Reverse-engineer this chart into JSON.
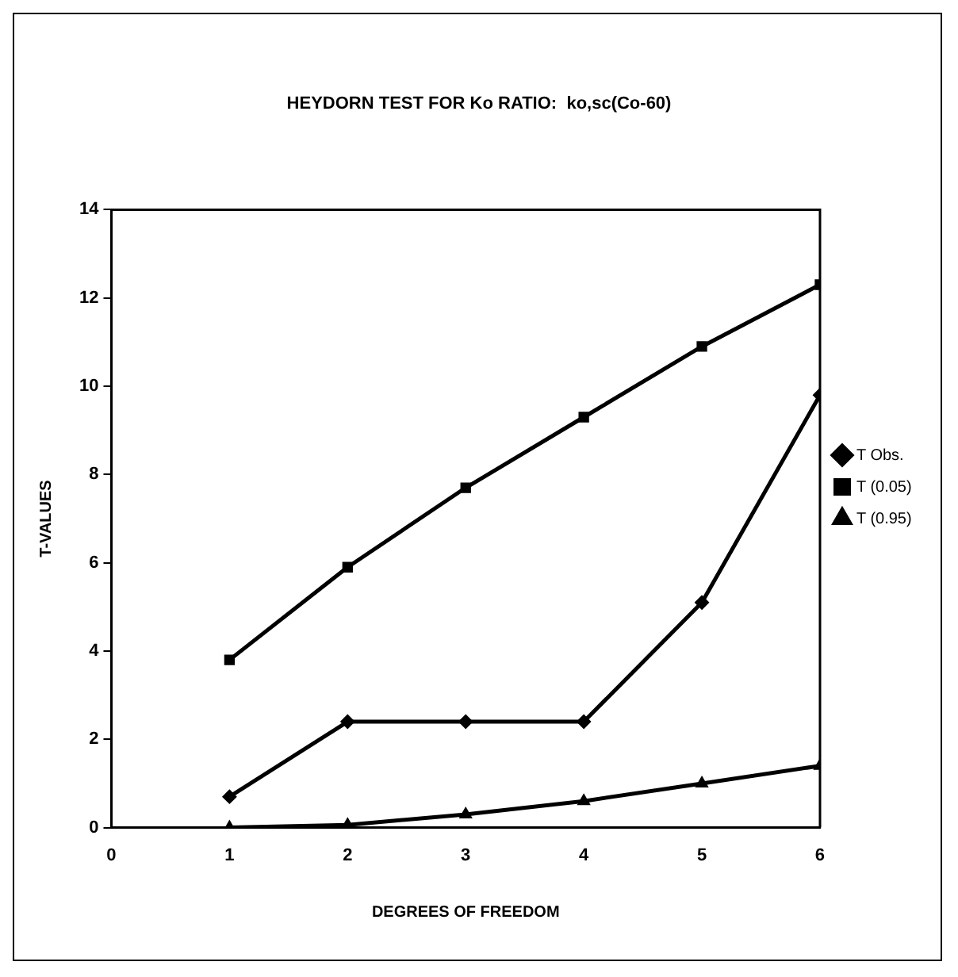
{
  "chart_data": {
    "type": "line",
    "title": "HEYDORN TEST FOR Ko RATIO:  ko,sc(Co-60)",
    "xlabel": "DEGREES OF FREEDOM",
    "ylabel": "T-VALUES",
    "x": [
      1,
      2,
      3,
      4,
      5,
      6
    ],
    "series": [
      {
        "name": "T Obs.",
        "color": "#000000",
        "marker": "diamond",
        "values": [
          0.7,
          2.4,
          2.4,
          2.4,
          5.1,
          9.8
        ]
      },
      {
        "name": "T (0.05)",
        "color": "#000000",
        "marker": "square",
        "values": [
          3.8,
          5.9,
          7.7,
          9.3,
          10.9,
          12.3
        ]
      },
      {
        "name": "T (0.95)",
        "color": "#000000",
        "marker": "triangle",
        "values": [
          0,
          0.06,
          0.3,
          0.6,
          1.0,
          1.4
        ]
      }
    ],
    "xlim": [
      0,
      6
    ],
    "xticks": [
      0,
      1,
      2,
      3,
      4,
      5,
      6
    ],
    "ylim": [
      0,
      14
    ],
    "yticks": [
      0,
      2,
      4,
      6,
      8,
      10,
      12,
      14
    ],
    "grid": false,
    "legend": "right",
    "line_style": "solid"
  }
}
